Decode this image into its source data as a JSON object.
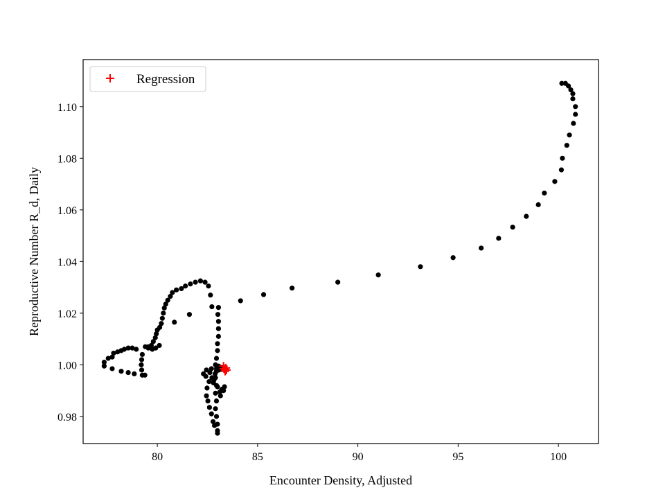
{
  "chart_data": {
    "type": "scatter",
    "title": "",
    "xlabel": "Encounter Density, Adjusted",
    "ylabel": "Reproductive Number R_d, Daily",
    "xlim": [
      76.3,
      102.0
    ],
    "ylim": [
      0.9695,
      1.1182
    ],
    "xticks": [
      80,
      85,
      90,
      95,
      100
    ],
    "yticks": [
      0.98,
      1.0,
      1.02,
      1.04,
      1.06,
      1.08,
      1.1
    ],
    "xtick_labels": [
      "80",
      "85",
      "90",
      "95",
      "100"
    ],
    "ytick_labels": [
      "0.98",
      "1.00",
      "1.02",
      "1.04",
      "1.06",
      "1.08",
      "1.10"
    ],
    "grid": false,
    "legend": {
      "position": "top-left",
      "entries": [
        "Regression"
      ]
    },
    "series": [
      {
        "marker": "circle",
        "color": "#000000",
        "points": [
          [
            100.17,
            1.109
          ],
          [
            100.35,
            1.109
          ],
          [
            100.5,
            1.108
          ],
          [
            100.62,
            1.1065
          ],
          [
            100.72,
            1.105
          ],
          [
            100.72,
            1.103
          ],
          [
            100.85,
            1.1
          ],
          [
            100.85,
            1.097
          ],
          [
            100.75,
            1.0935
          ],
          [
            100.55,
            1.089
          ],
          [
            100.42,
            1.085
          ],
          [
            100.2,
            1.08
          ],
          [
            100.15,
            1.0755
          ],
          [
            99.82,
            1.071
          ],
          [
            99.3,
            1.0665
          ],
          [
            99.0,
            1.062
          ],
          [
            98.4,
            1.0575
          ],
          [
            97.72,
            1.0533
          ],
          [
            97.02,
            1.049
          ],
          [
            96.15,
            1.0452
          ],
          [
            94.75,
            1.0415
          ],
          [
            93.12,
            1.038
          ],
          [
            91.02,
            1.0348
          ],
          [
            89.0,
            1.032
          ],
          [
            86.72,
            1.0297
          ],
          [
            85.3,
            1.0272
          ],
          [
            84.15,
            1.0248
          ],
          [
            83.05,
            1.0222
          ],
          [
            83.02,
            1.0195
          ],
          [
            83.05,
            1.0168
          ],
          [
            83.05,
            1.014
          ],
          [
            83.05,
            1.011
          ],
          [
            83.0,
            1.0082
          ],
          [
            83.0,
            1.0055
          ],
          [
            82.95,
            1.0025
          ],
          [
            82.9,
            1.0
          ],
          [
            82.95,
            0.9975
          ],
          [
            82.9,
            0.995
          ],
          [
            82.95,
            0.992
          ],
          [
            82.9,
            0.989
          ],
          [
            82.95,
            0.986
          ],
          [
            82.9,
            0.983
          ],
          [
            82.95,
            0.98
          ],
          [
            83.0,
            0.977
          ],
          [
            83.0,
            0.9745
          ],
          [
            83.0,
            0.9735
          ],
          [
            82.85,
            0.9765
          ],
          [
            82.78,
            0.978
          ],
          [
            82.7,
            0.981
          ],
          [
            82.6,
            0.9835
          ],
          [
            82.52,
            0.986
          ],
          [
            82.45,
            0.988
          ],
          [
            82.48,
            0.991
          ],
          [
            82.58,
            0.9935
          ],
          [
            82.72,
            0.995
          ],
          [
            82.88,
            0.9965
          ],
          [
            83.08,
            0.998
          ],
          [
            83.2,
            0.999
          ],
          [
            83.0,
            0.9915
          ],
          [
            83.12,
            0.9895
          ],
          [
            83.22,
            0.9905
          ],
          [
            83.35,
            0.9915
          ],
          [
            82.8,
            0.993
          ],
          [
            82.62,
            0.997
          ],
          [
            82.45,
            0.998
          ],
          [
            82.3,
            0.9965
          ],
          [
            82.42,
            0.9955
          ],
          [
            82.7,
            0.9985
          ],
          [
            83.05,
            0.9995
          ],
          [
            83.15,
            0.988
          ],
          [
            83.3,
            0.99
          ],
          [
            82.95,
            0.9985
          ],
          [
            82.82,
            0.994
          ],
          [
            82.72,
            1.0225
          ],
          [
            82.65,
            1.027
          ],
          [
            82.55,
            1.0305
          ],
          [
            82.38,
            1.032
          ],
          [
            82.15,
            1.0325
          ],
          [
            81.9,
            1.032
          ],
          [
            81.65,
            1.0313
          ],
          [
            81.4,
            1.0305
          ],
          [
            81.2,
            1.0295
          ],
          [
            80.95,
            1.029
          ],
          [
            80.75,
            1.028
          ],
          [
            80.65,
            1.0265
          ],
          [
            80.52,
            1.025
          ],
          [
            80.42,
            1.0235
          ],
          [
            80.35,
            1.022
          ],
          [
            80.3,
            1.02
          ],
          [
            80.25,
            1.018
          ],
          [
            80.2,
            1.016
          ],
          [
            80.12,
            1.0145
          ],
          [
            80.0,
            1.0135
          ],
          [
            79.95,
            1.012
          ],
          [
            79.9,
            1.0105
          ],
          [
            79.8,
            1.009
          ],
          [
            79.7,
            1.0075
          ],
          [
            79.55,
            1.007
          ],
          [
            79.4,
            1.007
          ],
          [
            79.55,
            1.0065
          ],
          [
            79.75,
            1.006
          ],
          [
            79.92,
            1.0065
          ],
          [
            80.1,
            1.0075
          ],
          [
            80.85,
            1.0165
          ],
          [
            81.6,
            1.0195
          ],
          [
            79.38,
            0.996
          ],
          [
            79.25,
            0.996
          ],
          [
            79.22,
            0.998
          ],
          [
            79.2,
            1.0
          ],
          [
            79.22,
            1.002
          ],
          [
            79.25,
            1.004
          ],
          [
            78.95,
            1.006
          ],
          [
            78.75,
            1.0065
          ],
          [
            78.55,
            1.0065
          ],
          [
            78.35,
            1.006
          ],
          [
            78.2,
            1.0055
          ],
          [
            78.02,
            1.005
          ],
          [
            77.82,
            1.0045
          ],
          [
            77.75,
            1.003
          ],
          [
            77.55,
            1.0025
          ],
          [
            77.35,
            1.001
          ],
          [
            77.35,
            0.9995
          ],
          [
            77.75,
            0.9985
          ],
          [
            78.2,
            0.9975
          ],
          [
            78.55,
            0.997
          ],
          [
            78.85,
            0.9965
          ]
        ]
      },
      {
        "name": "Regression",
        "marker": "plus",
        "color": "#ff0000",
        "points": [
          [
            83.3,
            0.9995
          ],
          [
            83.35,
            0.9985
          ],
          [
            83.4,
            0.998
          ],
          [
            83.45,
            0.998
          ],
          [
            83.38,
            0.9975
          ],
          [
            83.32,
            0.9985
          ],
          [
            83.42,
            0.9988
          ]
        ]
      }
    ]
  }
}
